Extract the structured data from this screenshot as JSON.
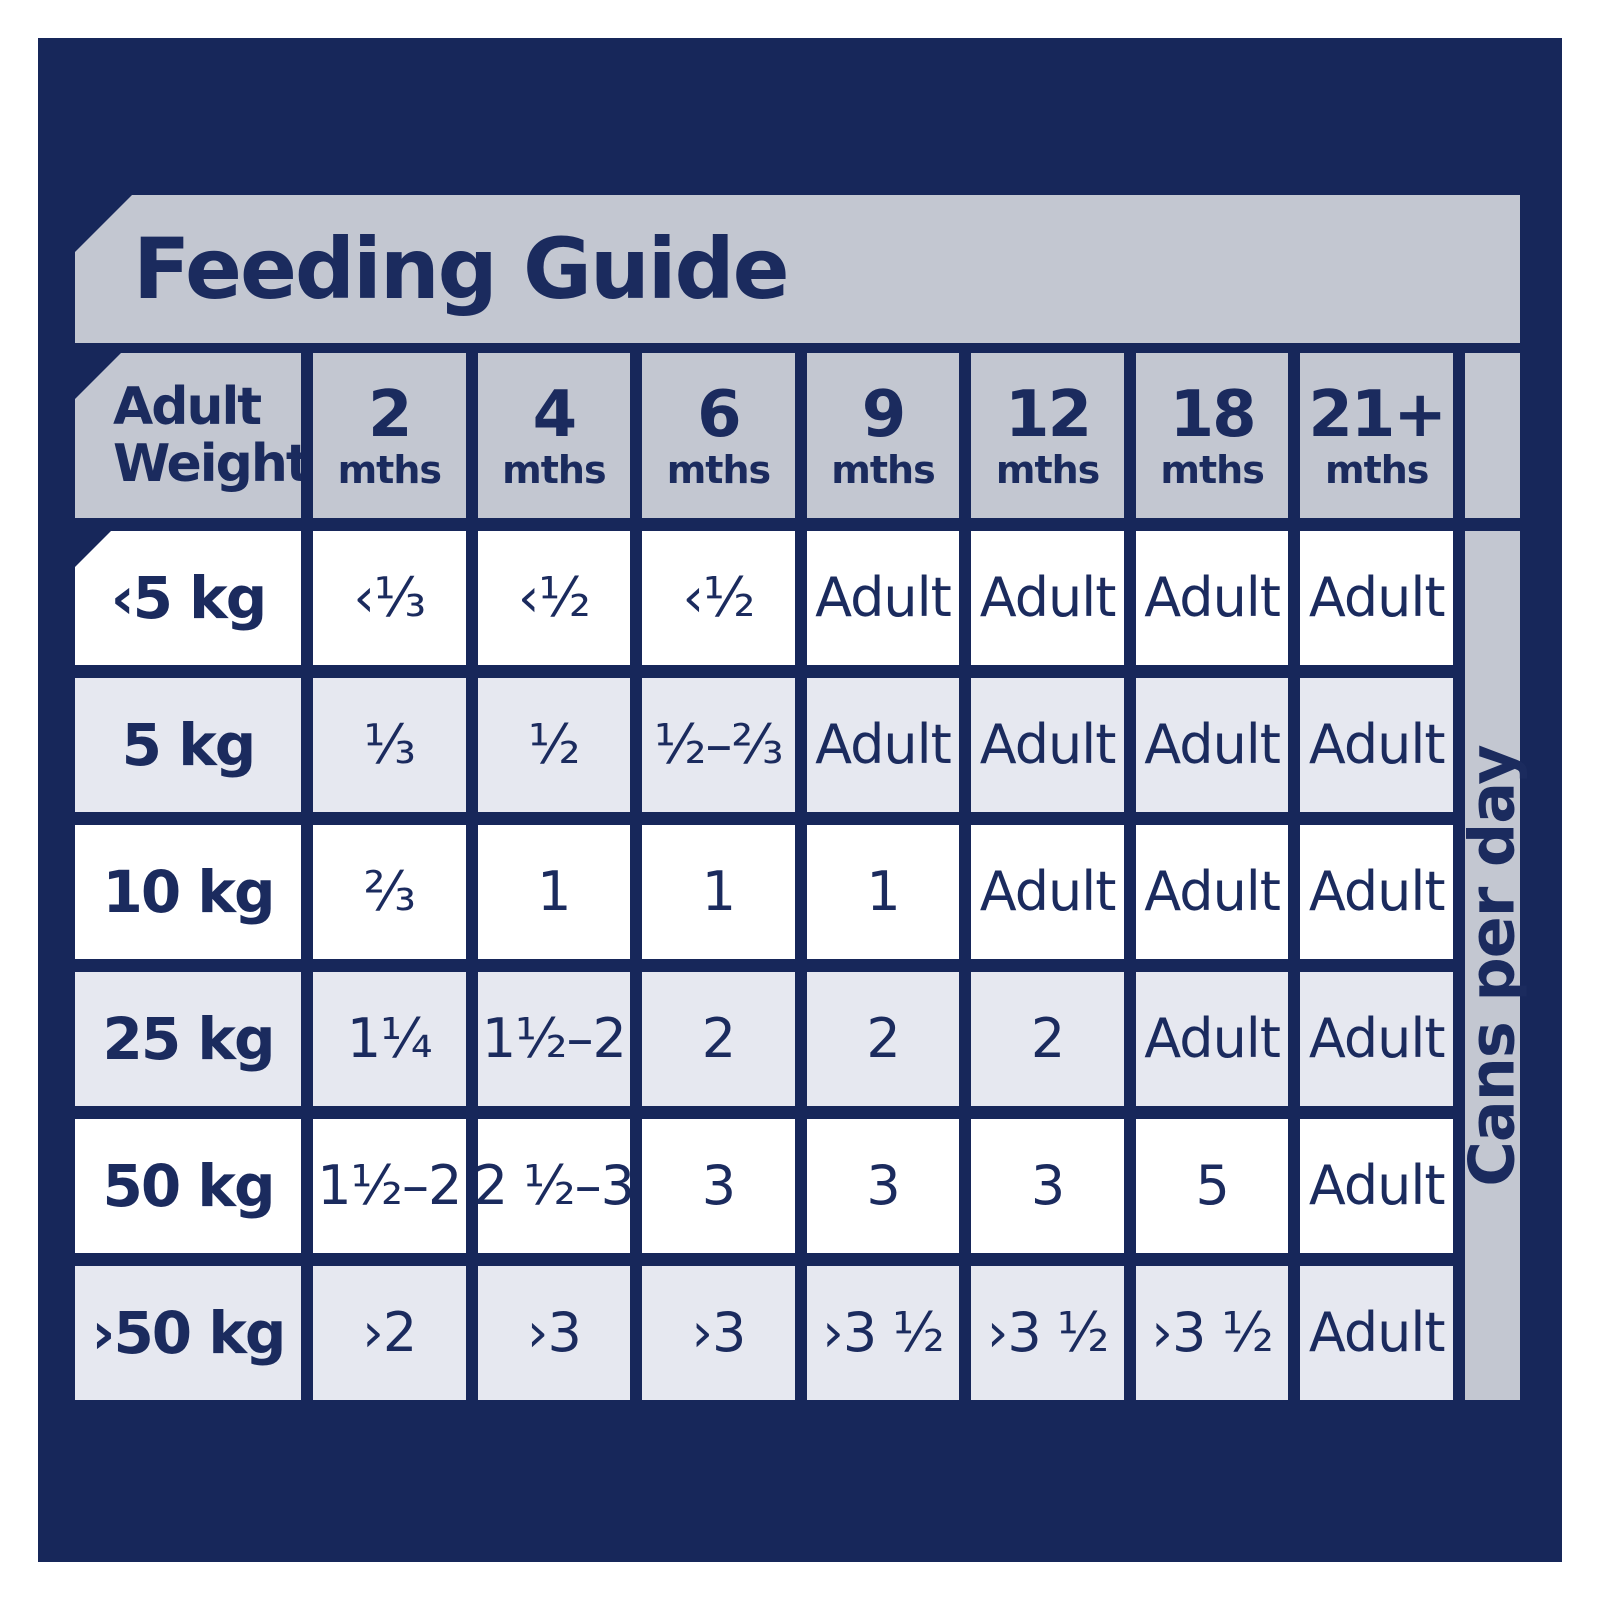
{
  "title": "Feeding Guide",
  "table": {
    "corner_header": {
      "line1": "Adult",
      "line2": "Weight"
    },
    "month_headers": [
      {
        "value": "2",
        "unit": "mths"
      },
      {
        "value": "4",
        "unit": "mths"
      },
      {
        "value": "6",
        "unit": "mths"
      },
      {
        "value": "9",
        "unit": "mths"
      },
      {
        "value": "12",
        "unit": "mths"
      },
      {
        "value": "18",
        "unit": "mths"
      },
      {
        "value": "21+",
        "unit": "mths"
      }
    ],
    "rows": [
      {
        "weight": "‹5 kg",
        "values": [
          "‹⅓",
          "‹½",
          "‹½",
          "Adult",
          "Adult",
          "Adult",
          "Adult"
        ]
      },
      {
        "weight": "5 kg",
        "values": [
          "⅓",
          "½",
          "½–⅔",
          "Adult",
          "Adult",
          "Adult",
          "Adult"
        ]
      },
      {
        "weight": "10 kg",
        "values": [
          "⅔",
          "1",
          "1",
          "1",
          "Adult",
          "Adult",
          "Adult"
        ]
      },
      {
        "weight": "25 kg",
        "values": [
          "1¼",
          "1½–2",
          "2",
          "2",
          "2",
          "Adult",
          "Adult"
        ]
      },
      {
        "weight": "50 kg",
        "values": [
          "1½–2",
          "2 ½–3",
          "3",
          "3",
          "3",
          "5",
          "Adult"
        ]
      },
      {
        "weight": "›50 kg",
        "values": [
          "›2",
          "›3",
          "›3",
          "›3 ½",
          "›3 ½",
          "›3 ½",
          "Adult"
        ]
      }
    ],
    "side_label": "Cans per day"
  },
  "colors": {
    "panel_navy": "#17275A",
    "text_navy": "#1B2B5E",
    "header_gray": "#C3C7D1",
    "row_light": "#E6E8F0",
    "row_white": "#FFFFFF"
  }
}
